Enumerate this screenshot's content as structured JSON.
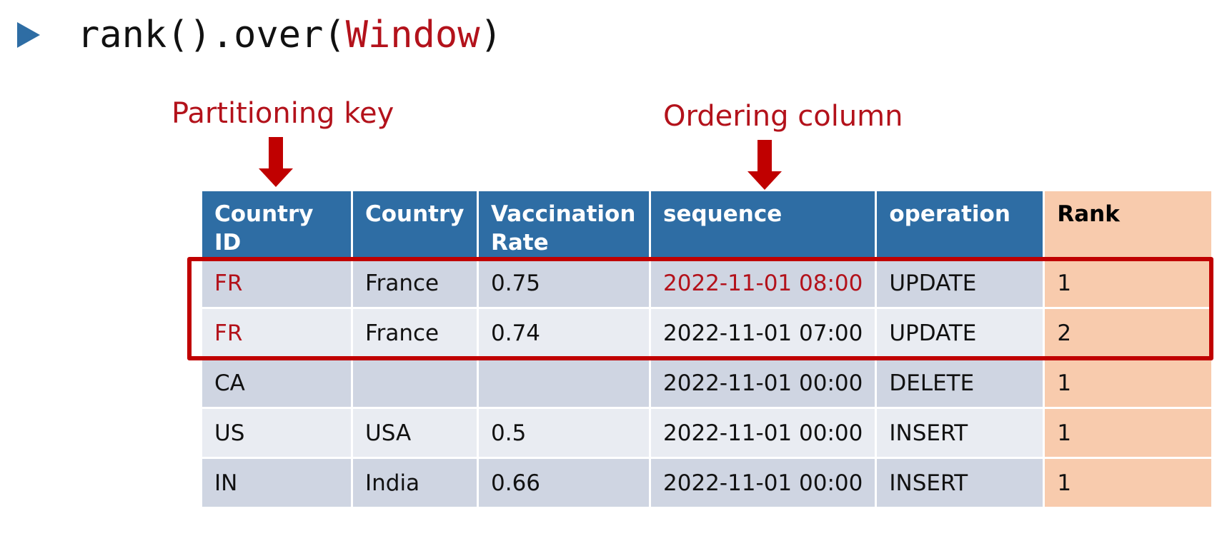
{
  "title": {
    "prefix": "rank().over(",
    "keyword": "Window",
    "suffix": ")"
  },
  "annotations": {
    "partition_label": "Partitioning key",
    "ordering_label": "Ordering column"
  },
  "colors": {
    "header_blue": "#2e6da4",
    "rank_peach": "#f8cbad",
    "highlight_red": "#b3121b",
    "box_red": "#c00000",
    "row_dark": "#cfd5e2",
    "row_light": "#e9ecf2"
  },
  "table": {
    "headers": [
      "Country ID",
      "Country",
      "Vaccination Rate",
      "sequence",
      "operation",
      "Rank"
    ],
    "rows": [
      [
        "FR",
        "France",
        "0.75",
        "2022-11-01 08:00",
        "UPDATE",
        "1"
      ],
      [
        "FR",
        "France",
        "0.74",
        "2022-11-01 07:00",
        "UPDATE",
        "2"
      ],
      [
        "CA",
        "",
        "",
        "2022-11-01 00:00",
        "DELETE",
        "1"
      ],
      [
        "US",
        "USA",
        "0.5",
        "2022-11-01 00:00",
        "INSERT",
        "1"
      ],
      [
        "IN",
        "India",
        "0.66",
        "2022-11-01 00:00",
        "INSERT",
        "1"
      ]
    ]
  }
}
